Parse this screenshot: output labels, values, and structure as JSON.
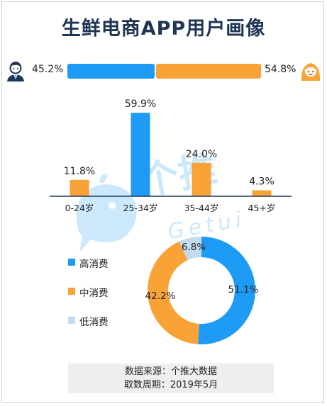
{
  "title": "生鲜电商APP用户画像",
  "colors": {
    "blue": "#1e9bf5",
    "orange": "#f8a238",
    "light_blue": "#c3dbef",
    "title": "#1f3554",
    "axis": "#1f3554"
  },
  "gender": {
    "male_label": "45.2%",
    "female_label": "54.8%",
    "male_value": 45.2,
    "female_value": 54.8,
    "male_icon": "male-avatar-icon",
    "female_icon": "female-avatar-icon"
  },
  "watermark": {
    "text": "个推",
    "subtext": "Getui",
    "icon": "whale-mascot-icon"
  },
  "chart_data": [
    {
      "type": "bar",
      "title": "",
      "categories": [
        "0-24岁",
        "25-34岁",
        "35-44岁",
        "45+岁"
      ],
      "values": [
        11.8,
        59.9,
        24.0,
        4.3
      ],
      "value_labels": [
        "11.8%",
        "59.9%",
        "24.0%",
        "4.3%"
      ],
      "bar_colors": [
        "#f8a238",
        "#1e9bf5",
        "#f8a238",
        "#f8a238"
      ],
      "ylim": [
        0,
        60
      ],
      "grid": false
    },
    {
      "type": "pie",
      "style": "donut",
      "labels": [
        "高消费",
        "中消费",
        "低消费"
      ],
      "values": [
        51.1,
        42.2,
        6.8
      ],
      "value_labels": [
        "51.1%",
        "42.2%",
        "6.8%"
      ],
      "colors": [
        "#1e9bf5",
        "#f8a238",
        "#c3dbef"
      ],
      "legend_position": "left"
    }
  ],
  "source": {
    "line1": "数据来源：个推大数据",
    "line2": "取数周期：2019年5月"
  }
}
